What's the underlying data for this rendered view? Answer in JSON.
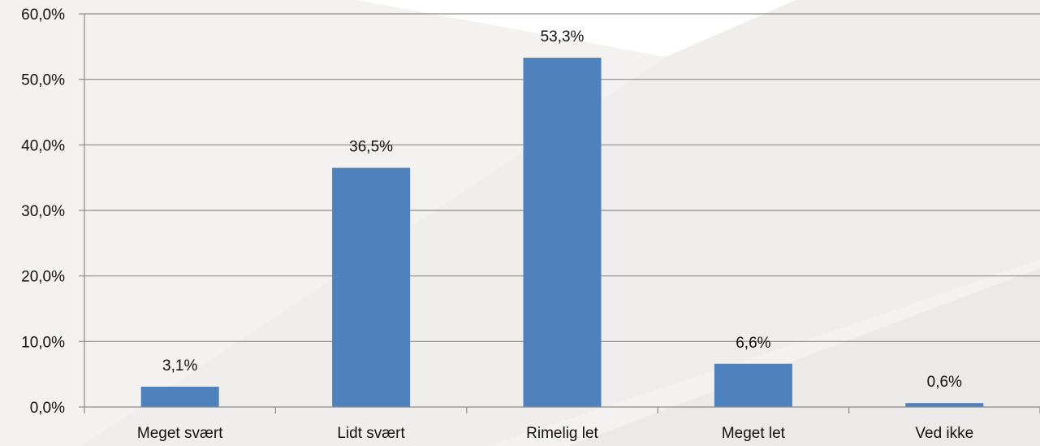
{
  "chart_data": {
    "type": "bar",
    "categories": [
      "Meget svært",
      "Lidt svært",
      "Rimelig let",
      "Meget let",
      "Ved ikke"
    ],
    "values": [
      3.1,
      36.5,
      53.3,
      6.6,
      0.6
    ],
    "data_labels": [
      "3,1%",
      "36,5%",
      "53,3%",
      "6,6%",
      "0,6%"
    ],
    "y_ticks": [
      {
        "value": 0,
        "label": "0,0%"
      },
      {
        "value": 10,
        "label": "10,0%"
      },
      {
        "value": 20,
        "label": "20,0%"
      },
      {
        "value": 30,
        "label": "30,0%"
      },
      {
        "value": 40,
        "label": "40,0%"
      },
      {
        "value": 50,
        "label": "50,0%"
      },
      {
        "value": 60,
        "label": "60,0%"
      }
    ],
    "ylim": [
      0,
      60
    ],
    "title": "",
    "xlabel": "",
    "ylabel": "",
    "grid": true,
    "legend": "none",
    "colors": {
      "bar": "#4F81BD",
      "gridline": "#8C8C8C",
      "axis": "#8C8C8C",
      "background": "#FFFFFF"
    }
  }
}
